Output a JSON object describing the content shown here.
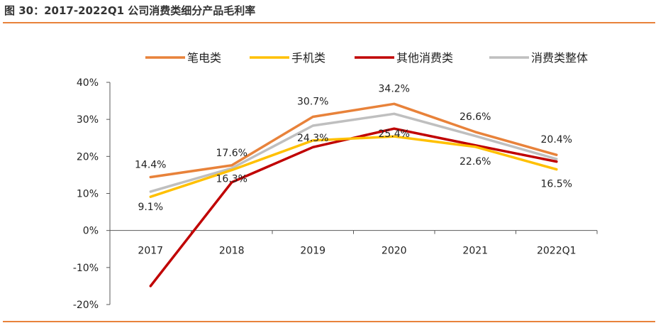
{
  "figure_title": "图 30：2017-2022Q1 公司消费类细分产品毛利率",
  "colors": {
    "rule": "#e8823a",
    "axis": "#595959",
    "text": "#222222",
    "title": "#333333"
  },
  "chart_data": {
    "type": "line",
    "title": "",
    "xlabel": "",
    "ylabel": "",
    "categories": [
      "2017",
      "2018",
      "2019",
      "2020",
      "2021",
      "2022Q1"
    ],
    "ylim": [
      -20,
      40
    ],
    "y_ticks": [
      40,
      30,
      20,
      10,
      0,
      -10,
      -20
    ],
    "y_tick_labels": [
      "40%",
      "30%",
      "20%",
      "10%",
      "0%",
      "-10%",
      "-20%"
    ],
    "grid": false,
    "legend_position": "top",
    "series": [
      {
        "name": "笔电类",
        "color": "#e8823a",
        "values": [
          14.4,
          17.6,
          30.7,
          34.2,
          26.6,
          20.4
        ],
        "labels": [
          "14.4%",
          "17.6%",
          "30.7%",
          "34.2%",
          "26.6%",
          "20.4%"
        ]
      },
      {
        "name": "手机类",
        "color": "#ffc000",
        "values": [
          9.1,
          16.3,
          24.3,
          25.4,
          22.6,
          16.5
        ],
        "labels": [
          "9.1%",
          "16.3%",
          "24.3%",
          "25.4%",
          "22.6%",
          "16.5%"
        ]
      },
      {
        "name": "其他消费类",
        "color": "#c00000",
        "values": [
          -15.0,
          13.0,
          22.5,
          27.5,
          23.0,
          18.6
        ],
        "labels": null
      },
      {
        "name": "消费类整体",
        "color": "#bfbfbf",
        "values": [
          10.5,
          16.8,
          28.3,
          31.5,
          25.5,
          19.3
        ],
        "labels": null
      }
    ]
  }
}
